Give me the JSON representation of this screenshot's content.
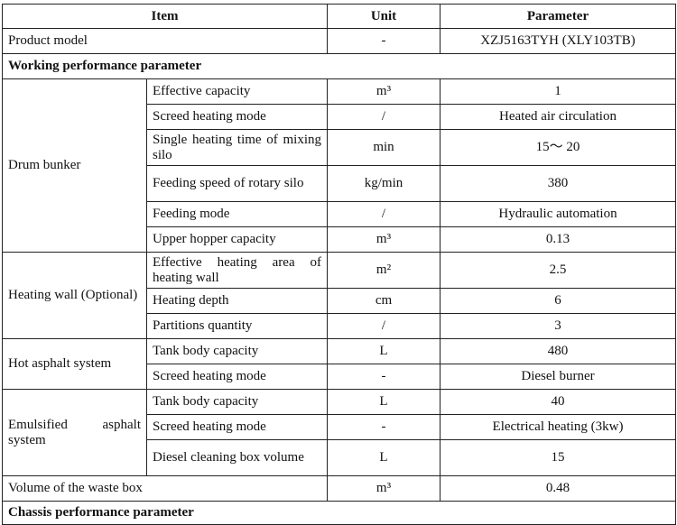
{
  "header": {
    "item": "Item",
    "unit": "Unit",
    "parameter": "Parameter"
  },
  "product_model": {
    "label": "Product model",
    "unit": "-",
    "value": "XZJ5163TYH (XLY103TB)"
  },
  "working_section": "Working performance parameter",
  "drum_bunker": {
    "label": "Drum bunker",
    "rows": [
      {
        "item": "Effective capacity",
        "unit": "m³",
        "value": "1"
      },
      {
        "item": "Screed heating mode",
        "unit": "/",
        "value": "Heated air circulation"
      },
      {
        "item": "Single heating time of mixing silo",
        "unit": "min",
        "value": "15～ 20"
      },
      {
        "item": "Feeding speed of rotary silo",
        "unit": "kg/min",
        "value": "380"
      },
      {
        "item": "Feeding mode",
        "unit": "/",
        "value": "Hydraulic automation"
      },
      {
        "item": "Upper hopper capacity",
        "unit": "m³",
        "value": "0.13"
      }
    ]
  },
  "heating_wall": {
    "label": "Heating wall (Optional)",
    "rows": [
      {
        "item": "Effective heating area of heating wall",
        "unit": "m²",
        "value": "2.5"
      },
      {
        "item": "Heating depth",
        "unit": "cm",
        "value": "6"
      },
      {
        "item": "Partitions quantity",
        "unit": "/",
        "value": "3"
      }
    ]
  },
  "hot_asphalt": {
    "label": "Hot asphalt system",
    "rows": [
      {
        "item": "Tank body capacity",
        "unit": "L",
        "value": "480"
      },
      {
        "item": "Screed heating mode",
        "unit": "-",
        "value": "Diesel burner"
      }
    ]
  },
  "emulsified_asphalt": {
    "label": "Emulsified asphalt system",
    "rows": [
      {
        "item": "Tank body capacity",
        "unit": "L",
        "value": "40"
      },
      {
        "item": "Screed heating mode",
        "unit": "-",
        "value": "Electrical heating (3kw)"
      },
      {
        "item": "Diesel cleaning box volume",
        "unit": "L",
        "value": "15"
      }
    ]
  },
  "waste_box": {
    "label": "Volume of the waste box",
    "unit": "m³",
    "value": "0.48"
  },
  "chassis_section": "Chassis performance parameter"
}
